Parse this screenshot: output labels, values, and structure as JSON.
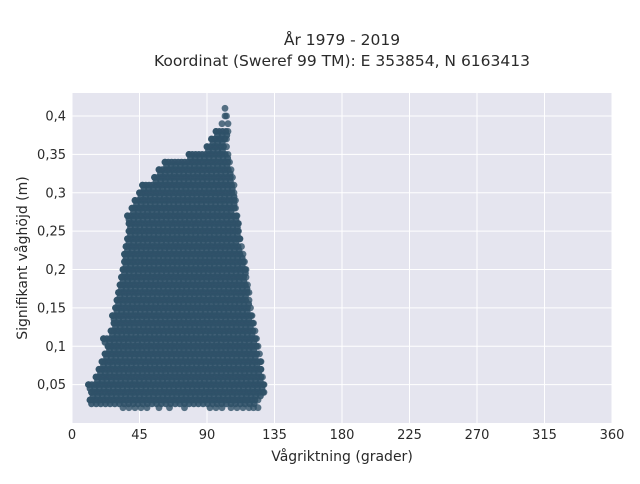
{
  "chart_data": {
    "type": "scatter",
    "title_lines": [
      "År 1979 - 2019",
      "Koordinat (Sweref 99 TM): E 353854, N 6163413"
    ],
    "xlabel": "Vågriktning (grader)",
    "ylabel": "Signifikant våghöjd (m)",
    "xlim": [
      0,
      360
    ],
    "ylim": [
      0,
      0.43
    ],
    "x_ticks": [
      0,
      45,
      90,
      135,
      180,
      225,
      270,
      315,
      360
    ],
    "x_tick_labels": [
      "0",
      "45",
      "90",
      "135",
      "180",
      "225",
      "270",
      "315",
      "360"
    ],
    "y_ticks": [
      0.05,
      0.1,
      0.15,
      0.2,
      0.25,
      0.3,
      0.35,
      0.4
    ],
    "y_tick_labels": [
      "0,05",
      "0,1",
      "0,15",
      "0,2",
      "0,25",
      "0,3",
      "0,35",
      "0,4"
    ],
    "grid": true,
    "marker_color": "#2f5168",
    "plot_bg": "#e5e5ef",
    "series": [
      {
        "points": [
          [
            12,
            0.03
          ],
          [
            13,
            0.04
          ],
          [
            11,
            0.05
          ],
          [
            16,
            0.06
          ],
          [
            18,
            0.07
          ],
          [
            20,
            0.08
          ],
          [
            22,
            0.09
          ],
          [
            24,
            0.1
          ],
          [
            21,
            0.11
          ],
          [
            26,
            0.12
          ],
          [
            28,
            0.13
          ],
          [
            27,
            0.14
          ],
          [
            29,
            0.15
          ],
          [
            30,
            0.16
          ],
          [
            31,
            0.17
          ],
          [
            32,
            0.18
          ],
          [
            33,
            0.19
          ],
          [
            34,
            0.2
          ],
          [
            35,
            0.21
          ],
          [
            35,
            0.22
          ],
          [
            36,
            0.23
          ],
          [
            37,
            0.24
          ],
          [
            38,
            0.25
          ],
          [
            38,
            0.26
          ],
          [
            37,
            0.27
          ],
          [
            40,
            0.28
          ],
          [
            42,
            0.29
          ],
          [
            45,
            0.3
          ],
          [
            47,
            0.31
          ],
          [
            55,
            0.32
          ],
          [
            58,
            0.33
          ],
          [
            62,
            0.34
          ],
          [
            78,
            0.35
          ],
          [
            90,
            0.36
          ],
          [
            93,
            0.37
          ],
          [
            96,
            0.38
          ],
          [
            100,
            0.39
          ],
          [
            102,
            0.4
          ],
          [
            102,
            0.41
          ],
          [
            34,
            0.02
          ],
          [
            38,
            0.02
          ],
          [
            42,
            0.02
          ],
          [
            46,
            0.02
          ],
          [
            50,
            0.02
          ],
          [
            58,
            0.02
          ],
          [
            65,
            0.02
          ],
          [
            75,
            0.02
          ],
          [
            92,
            0.02
          ],
          [
            96,
            0.02
          ],
          [
            100,
            0.02
          ],
          [
            106,
            0.02
          ],
          [
            110,
            0.02
          ],
          [
            114,
            0.02
          ],
          [
            118,
            0.02
          ],
          [
            121,
            0.02
          ],
          [
            124,
            0.02
          ],
          [
            108,
            0.03
          ],
          [
            116,
            0.03
          ],
          [
            124,
            0.03
          ],
          [
            128,
            0.04
          ],
          [
            128,
            0.05
          ],
          [
            127,
            0.06
          ],
          [
            126,
            0.07
          ],
          [
            126,
            0.08
          ],
          [
            125,
            0.09
          ],
          [
            124,
            0.1
          ],
          [
            123,
            0.11
          ],
          [
            122,
            0.12
          ],
          [
            121,
            0.13
          ],
          [
            120,
            0.14
          ],
          [
            119,
            0.15
          ],
          [
            118,
            0.16
          ],
          [
            118,
            0.17
          ],
          [
            117,
            0.18
          ],
          [
            116,
            0.19
          ],
          [
            116,
            0.2
          ],
          [
            115,
            0.21
          ],
          [
            114,
            0.22
          ],
          [
            113,
            0.23
          ],
          [
            112,
            0.24
          ],
          [
            111,
            0.25
          ],
          [
            111,
            0.26
          ],
          [
            110,
            0.27
          ],
          [
            109,
            0.28
          ],
          [
            109,
            0.29
          ],
          [
            108,
            0.3
          ],
          [
            108,
            0.31
          ],
          [
            107,
            0.32
          ],
          [
            106,
            0.33
          ],
          [
            105,
            0.34
          ],
          [
            104,
            0.35
          ],
          [
            103,
            0.36
          ],
          [
            103,
            0.37
          ],
          [
            104,
            0.38
          ],
          [
            104,
            0.39
          ],
          [
            103,
            0.4
          ]
        ]
      }
    ]
  }
}
